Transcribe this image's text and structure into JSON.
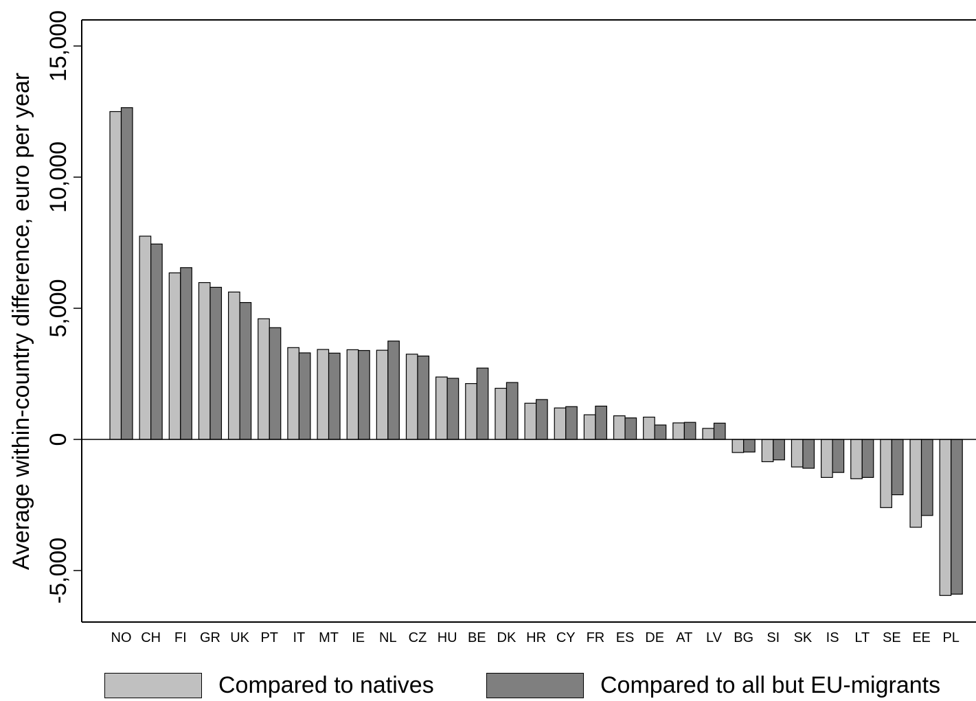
{
  "chart_data": {
    "type": "bar",
    "ylabel": "Average within-country difference, euro per year",
    "xlabel": "",
    "ylim": [
      -7000,
      16000
    ],
    "yticks": [
      -5000,
      0,
      5000,
      10000,
      15000
    ],
    "ytick_labels": [
      "-5,000",
      "0",
      "5,000",
      "10,000",
      "15,000"
    ],
    "grid": false,
    "legend_position": "bottom",
    "categories": [
      "NO",
      "CH",
      "FI",
      "GR",
      "UK",
      "PT",
      "IT",
      "MT",
      "IE",
      "NL",
      "CZ",
      "HU",
      "BE",
      "DK",
      "HR",
      "CY",
      "FR",
      "ES",
      "DE",
      "AT",
      "LV",
      "BG",
      "SI",
      "SK",
      "IS",
      "LT",
      "SE",
      "EE",
      "PL"
    ],
    "series": [
      {
        "name": "Compared to natives",
        "color": "#c0c0c0",
        "values": [
          12500,
          7750,
          6350,
          5980,
          5620,
          4600,
          3500,
          3430,
          3420,
          3400,
          3250,
          2380,
          2130,
          1950,
          1380,
          1200,
          940,
          900,
          850,
          630,
          420,
          -500,
          -850,
          -1050,
          -1450,
          -1500,
          -2600,
          -3350,
          -5950
        ]
      },
      {
        "name": "Compared to all but EU-migrants",
        "color": "#7f7f7f",
        "values": [
          12650,
          7450,
          6550,
          5800,
          5220,
          4260,
          3300,
          3290,
          3390,
          3750,
          3180,
          2330,
          2720,
          2170,
          1520,
          1250,
          1270,
          820,
          550,
          650,
          620,
          -480,
          -780,
          -1100,
          -1260,
          -1450,
          -2110,
          -2900,
          -5900
        ]
      }
    ]
  }
}
